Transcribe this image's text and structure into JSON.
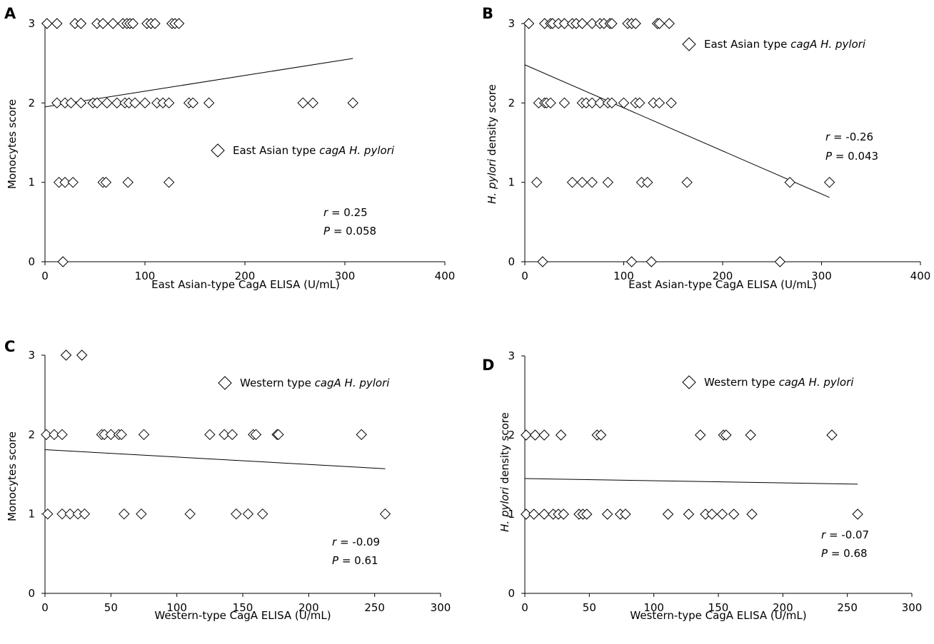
{
  "chart_data": [
    {
      "type": "scatter",
      "panel_label": "A",
      "xlabel": "East Asian-type CagA ELISA (U/mL)",
      "ylabel": "Monocytes score",
      "ylabel_italic": "",
      "ylabel_rest": "Monocytes score",
      "xlim": [
        0,
        400
      ],
      "ylim": [
        0,
        3
      ],
      "xticks": [
        0,
        100,
        200,
        300,
        400
      ],
      "yticks": [
        0,
        1,
        2,
        3
      ],
      "legend": {
        "prefix": "East Asian type ",
        "italic": "cagA H. pylori"
      },
      "stats": {
        "r_sym": "r",
        "r_val": " = 0.25",
        "p_sym": "P",
        "p_val": " = 0.058"
      },
      "trend": {
        "x": [
          0,
          308
        ],
        "y": [
          1.95,
          2.56
        ]
      },
      "x": [
        2,
        12,
        30,
        36,
        52,
        58,
        68,
        78,
        82,
        85,
        88,
        102,
        106,
        110,
        127,
        130,
        134,
        12,
        20,
        26,
        36,
        48,
        52,
        62,
        72,
        80,
        84,
        90,
        100,
        112,
        118,
        124,
        144,
        148,
        164,
        258,
        268,
        308,
        14,
        20,
        28,
        58,
        61,
        83,
        124,
        18
      ],
      "y": [
        3,
        3,
        3,
        3,
        3,
        3,
        3,
        3,
        3,
        3,
        3,
        3,
        3,
        3,
        3,
        3,
        3,
        2,
        2,
        2,
        2,
        2,
        2,
        2,
        2,
        2,
        2,
        2,
        2,
        2,
        2,
        2,
        2,
        2,
        2,
        2,
        2,
        2,
        1,
        1,
        1,
        1,
        1,
        1,
        1,
        0
      ]
    },
    {
      "type": "scatter",
      "panel_label": "B",
      "xlabel": "East Asian-type CagA ELISA (U/mL)",
      "ylabel": "H. pylori density score",
      "ylabel_italic": "H. pylori",
      "ylabel_rest": " density score",
      "xlim": [
        0,
        400
      ],
      "ylim": [
        0,
        3
      ],
      "xticks": [
        0,
        100,
        200,
        300,
        400
      ],
      "yticks": [
        0,
        1,
        2,
        3
      ],
      "legend": {
        "prefix": "East Asian type ",
        "italic": "cagA H. pylori"
      },
      "stats": {
        "r_sym": "r",
        "r_val": " = -0.26",
        "p_sym": "P",
        "p_val": " = 0.043"
      },
      "trend": {
        "x": [
          0,
          308
        ],
        "y": [
          2.48,
          0.81
        ]
      },
      "x": [
        4,
        20,
        26,
        28,
        34,
        40,
        48,
        52,
        58,
        68,
        76,
        80,
        86,
        88,
        104,
        108,
        112,
        134,
        136,
        146,
        14,
        20,
        22,
        26,
        40,
        58,
        62,
        68,
        76,
        84,
        88,
        100,
        112,
        116,
        130,
        136,
        148,
        12,
        48,
        58,
        68,
        84,
        118,
        124,
        164,
        268,
        308,
        18,
        108,
        128,
        258
      ],
      "y": [
        3,
        3,
        3,
        3,
        3,
        3,
        3,
        3,
        3,
        3,
        3,
        3,
        3,
        3,
        3,
        3,
        3,
        3,
        3,
        3,
        2,
        2,
        2,
        2,
        2,
        2,
        2,
        2,
        2,
        2,
        2,
        2,
        2,
        2,
        2,
        2,
        2,
        1,
        1,
        1,
        1,
        1,
        1,
        1,
        1,
        1,
        1,
        0,
        0,
        0,
        0
      ]
    },
    {
      "type": "scatter",
      "panel_label": "C",
      "xlabel": "Western-type CagA ELISA (U/mL)",
      "ylabel": "Monocytes score",
      "ylabel_italic": "",
      "ylabel_rest": "Monocytes score",
      "xlim": [
        0,
        300
      ],
      "ylim": [
        0,
        3
      ],
      "xticks": [
        0,
        50,
        100,
        150,
        200,
        250,
        300
      ],
      "yticks": [
        0,
        1,
        2,
        3
      ],
      "legend": {
        "prefix": "Western type ",
        "italic": "cagA H. pylori"
      },
      "stats": {
        "r_sym": "r",
        "r_val": " = -0.09",
        "p_sym": "P",
        "p_val": " = 0.61"
      },
      "trend": {
        "x": [
          0,
          258
        ],
        "y": [
          1.81,
          1.57
        ]
      },
      "x": [
        16,
        28,
        1,
        7,
        13,
        43,
        45,
        50,
        56,
        58,
        75,
        125,
        136,
        142,
        158,
        160,
        176,
        177,
        240,
        2,
        13,
        19,
        25,
        30,
        60,
        73,
        110,
        145,
        154,
        165,
        258
      ],
      "y": [
        3,
        3,
        2,
        2,
        2,
        2,
        2,
        2,
        2,
        2,
        2,
        2,
        2,
        2,
        2,
        2,
        2,
        2,
        2,
        1,
        1,
        1,
        1,
        1,
        1,
        1,
        1,
        1,
        1,
        1,
        1
      ]
    },
    {
      "type": "scatter",
      "panel_label": "D",
      "xlabel": "Western-type CagA ELISA (U/mL)",
      "ylabel": "H. pylori density score",
      "ylabel_italic": "H. pylori",
      "ylabel_rest": " density score",
      "xlim": [
        0,
        300
      ],
      "ylim": [
        0,
        3
      ],
      "xticks": [
        0,
        50,
        100,
        150,
        200,
        250,
        300
      ],
      "yticks": [
        0,
        1,
        2,
        3
      ],
      "legend": {
        "prefix": "Western type ",
        "italic": "cagA H. pylori"
      },
      "stats": {
        "r_sym": "r",
        "r_val": " = -0.07",
        "p_sym": "P",
        "p_val": " = 0.68"
      },
      "trend": {
        "x": [
          0,
          258
        ],
        "y": [
          1.45,
          1.38
        ]
      },
      "x": [
        1,
        8,
        15,
        28,
        56,
        59,
        136,
        154,
        156,
        175,
        238,
        1,
        7,
        15,
        22,
        26,
        30,
        42,
        45,
        48,
        64,
        74,
        78,
        111,
        127,
        140,
        145,
        153,
        162,
        176,
        258
      ],
      "y": [
        2,
        2,
        2,
        2,
        2,
        2,
        2,
        2,
        2,
        2,
        2,
        1,
        1,
        1,
        1,
        1,
        1,
        1,
        1,
        1,
        1,
        1,
        1,
        1,
        1,
        1,
        1,
        1,
        1,
        1,
        1
      ]
    }
  ]
}
